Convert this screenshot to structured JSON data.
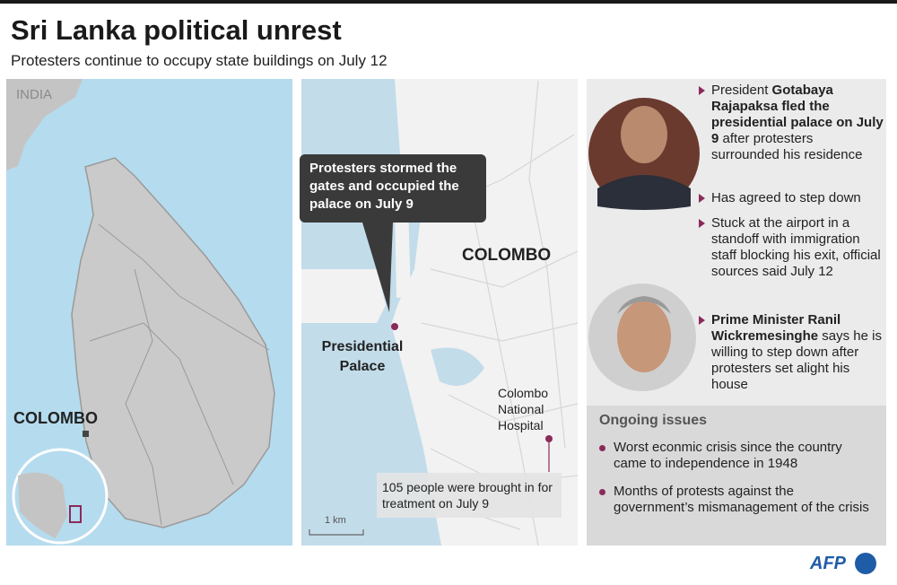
{
  "header": {
    "title": "Sri Lanka political unrest",
    "subtitle": "Protesters continue to occupy state buildings on July 12"
  },
  "locator_map": {
    "country": "INDIA",
    "city": "COLOMBO"
  },
  "city_map": {
    "callout": "Protesters stormed the gates and occupied the palace on July 9",
    "city": "COLOMBO",
    "palace": "Presidential Palace",
    "hospital": "Colombo National Hospital",
    "hospital_note": "105 people were brought in for treatment on July 9",
    "scale": "1 km"
  },
  "people": [
    {
      "bullets": [
        [
          {
            "text": "President ",
            "bold": false
          },
          {
            "text": "Gotabaya Rajapaksa fled the presidential palace on July 9",
            "bold": true
          },
          {
            "text": " after protesters surrounded his residence",
            "bold": false
          }
        ],
        [
          {
            "text": "Has agreed to step down",
            "bold": false
          }
        ],
        [
          {
            "text": "Stuck at the airport in a standoff with immigration staff blocking his exit, official sources said July 12",
            "bold": false
          }
        ]
      ]
    },
    {
      "bullets": [
        [
          {
            "text": "Prime Minister Ranil Wickremesinghe",
            "bold": true
          },
          {
            "text": " says he is willing to step down after protesters set alight his house",
            "bold": false
          }
        ]
      ]
    }
  ],
  "ongoing": {
    "heading": "Ongoing issues",
    "bullets": [
      "Worst econmic crisis since the country came to independence in 1948",
      "Months of protests against the government’s mismanagement of the crisis"
    ]
  },
  "footer": {
    "credit": "AFP"
  }
}
